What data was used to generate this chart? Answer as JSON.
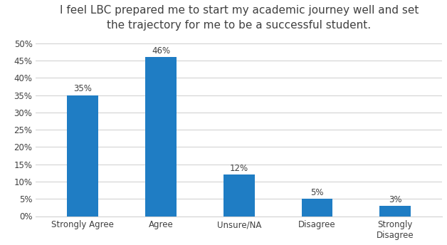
{
  "categories": [
    "Strongly Agree",
    "Agree",
    "Unsure/NA",
    "Disagree",
    "Strongly\nDisagree"
  ],
  "values": [
    35,
    46,
    12,
    5,
    3
  ],
  "labels": [
    "35%",
    "46%",
    "12%",
    "5%",
    "3%"
  ],
  "bar_color": "#1F7DC4",
  "title_line1": "I feel LBC prepared me to start my academic journey well and set",
  "title_line2": "the trajectory for me to be a successful student.",
  "ylim": [
    0,
    52
  ],
  "yticks": [
    0,
    5,
    10,
    15,
    20,
    25,
    30,
    35,
    40,
    45,
    50
  ],
  "ytick_labels": [
    "0%",
    "5%",
    "10%",
    "15%",
    "20%",
    "25%",
    "30%",
    "35%",
    "40%",
    "45%",
    "50%"
  ],
  "background_color": "#ffffff",
  "grid_color": "#d3d3d3",
  "title_fontsize": 11,
  "tick_fontsize": 8.5,
  "label_fontsize": 8.5,
  "bar_width": 0.4
}
